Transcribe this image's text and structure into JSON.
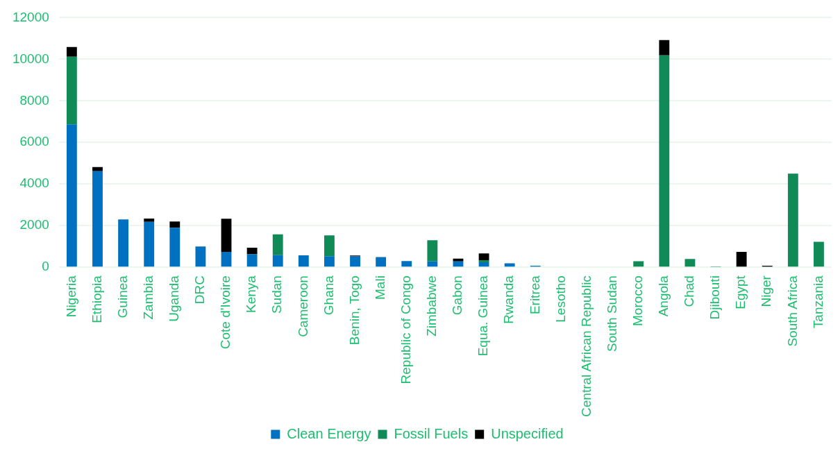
{
  "chart_data": {
    "type": "bar",
    "stacked": true,
    "categories": [
      "Nigeria",
      "Ethiopia",
      "Guinea",
      "Zambia",
      "Uganda",
      "DRC",
      "Cote d'Ivoire",
      "Kenya",
      "Sudan",
      "Cameroon",
      "Ghana",
      "Benin, Togo",
      "Mali",
      "Republic of Congo",
      "Zimbabwe",
      "Gabon",
      "Equa. Guinea",
      "Rwanda",
      "Eritrea",
      "Lesotho",
      "Central African Republic",
      "South Sudan",
      "Morocco",
      "Angola",
      "Chad",
      "Djibouti",
      "Egypt",
      "Niger",
      "South Africa",
      "Tanzania"
    ],
    "series": [
      {
        "name": "Clean Energy",
        "color": "#0070c0",
        "values": [
          6870,
          4620,
          2300,
          2180,
          1900,
          1000,
          740,
          620,
          580,
          570,
          530,
          520,
          490,
          300,
          280,
          280,
          240,
          190,
          70,
          null,
          null,
          null,
          null,
          null,
          null,
          null,
          null,
          null,
          null,
          null
        ]
      },
      {
        "name": "Fossil Fuels",
        "color": "#108a56",
        "values": [
          3250,
          null,
          null,
          null,
          null,
          null,
          null,
          null,
          1000,
          null,
          1000,
          null,
          null,
          null,
          1020,
          null,
          100,
          null,
          null,
          null,
          null,
          null,
          290,
          10190,
          400,
          15,
          null,
          null,
          4500,
          1220
        ]
      },
      {
        "name": "Unspecified",
        "color": "#000000",
        "values": [
          470,
          200,
          null,
          160,
          300,
          null,
          1590,
          320,
          null,
          null,
          null,
          40,
          null,
          null,
          null,
          130,
          320,
          null,
          null,
          null,
          null,
          null,
          null,
          730,
          null,
          null,
          740,
          70,
          null,
          null
        ]
      }
    ],
    "ylim": [
      0,
      12000
    ],
    "yticks": [
      0,
      2000,
      4000,
      6000,
      8000,
      10000,
      12000
    ],
    "grid": "y",
    "legend": "bottom"
  }
}
